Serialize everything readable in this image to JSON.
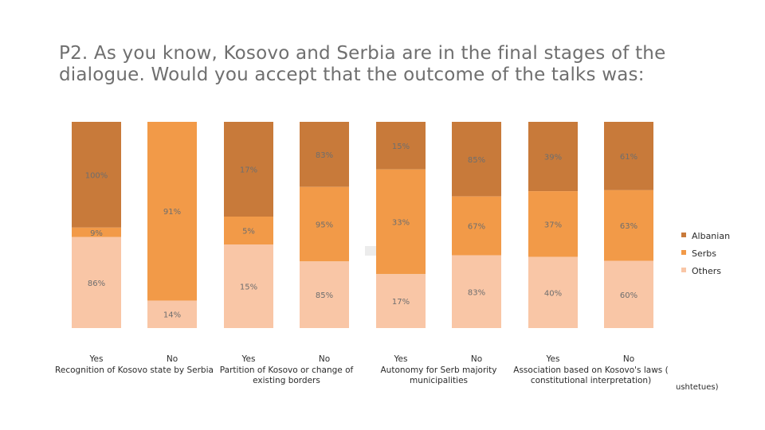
{
  "title": "P2. As you know, Kosovo and Serbia are in the final stages of the dialogue. Would you accept that the outcome of the talks was:",
  "footnote": "ushtetues)",
  "colors": {
    "Albanian": "#c87a3a",
    "Serbs": "#f29a48",
    "Others": "#f9c6a6"
  },
  "chart_data": {
    "type": "bar",
    "stacked": true,
    "normalized": true,
    "title": "P2. As you know, Kosovo and Serbia are in the final stages of the dialogue. Would you accept that the outcome of the talks was:",
    "legend_position": "right",
    "legend": [
      "Albanian",
      "Serbs",
      "Others"
    ],
    "groups": [
      {
        "name": "Recognition of Kosovo state by Serbia",
        "categories": [
          "Yes",
          "No"
        ]
      },
      {
        "name": "Partition of Kosovo or change of existing borders",
        "categories": [
          "Yes",
          "No"
        ]
      },
      {
        "name": "Autonomy for Serb majority municipalities",
        "categories": [
          "Yes",
          "No"
        ]
      },
      {
        "name": "Association based on Kosovo's laws ( constitutional interpretation)",
        "categories": [
          "Yes",
          "No"
        ]
      }
    ],
    "series": [
      {
        "name": "Albanian",
        "values": [
          100,
          0,
          17,
          83,
          15,
          85,
          39,
          61
        ]
      },
      {
        "name": "Serbs",
        "values": [
          9,
          91,
          5,
          95,
          33,
          67,
          37,
          63
        ]
      },
      {
        "name": "Others",
        "values": [
          86,
          14,
          15,
          85,
          17,
          83,
          40,
          60
        ]
      }
    ],
    "data_labels": {
      "Albanian": [
        "100%",
        "",
        "17%",
        "83%",
        "15%",
        "85%",
        "39%",
        "61%"
      ],
      "Serbs": [
        "9%",
        "91%",
        "5%",
        "95%",
        "33%",
        "67%",
        "37%",
        "63%"
      ],
      "Others": [
        "86%",
        "14%",
        "15%",
        "85%",
        "17%",
        "83%",
        "40%",
        "60%"
      ]
    }
  }
}
